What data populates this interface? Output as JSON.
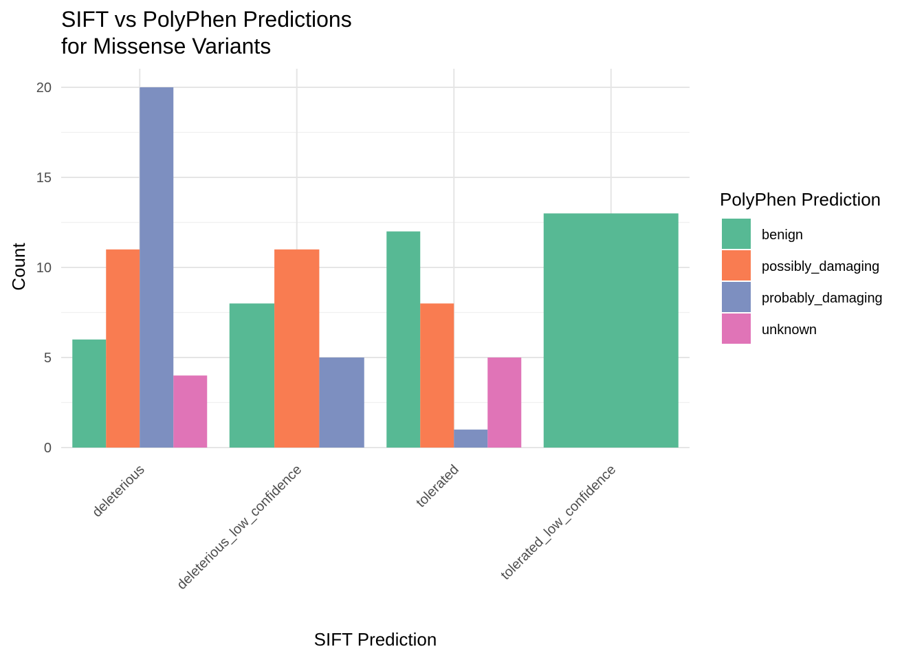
{
  "chart_data": {
    "type": "bar",
    "title": "SIFT vs PolyPhen Predictions",
    "subtitle": "for Missense Variants",
    "xlabel": "SIFT Prediction",
    "ylabel": "Count",
    "ylim": [
      0,
      21
    ],
    "yticks": [
      0,
      5,
      10,
      15,
      20
    ],
    "grid": true,
    "legend_placement": "right",
    "legend_title": "PolyPhen Prediction",
    "categories": [
      "deleterious",
      "deleterious_low_confidence",
      "tolerated",
      "tolerated_low_confidence"
    ],
    "series": [
      {
        "name": "benign",
        "color": "#57b994",
        "values": [
          6,
          8,
          12,
          13
        ]
      },
      {
        "name": "possibly_damaging",
        "color": "#f97c51",
        "values": [
          11,
          11,
          8,
          null
        ]
      },
      {
        "name": "probably_damaging",
        "color": "#7d8fc0",
        "values": [
          20,
          5,
          1,
          null
        ]
      },
      {
        "name": "unknown",
        "color": "#e074b7",
        "values": [
          4,
          null,
          5,
          null
        ]
      }
    ]
  }
}
